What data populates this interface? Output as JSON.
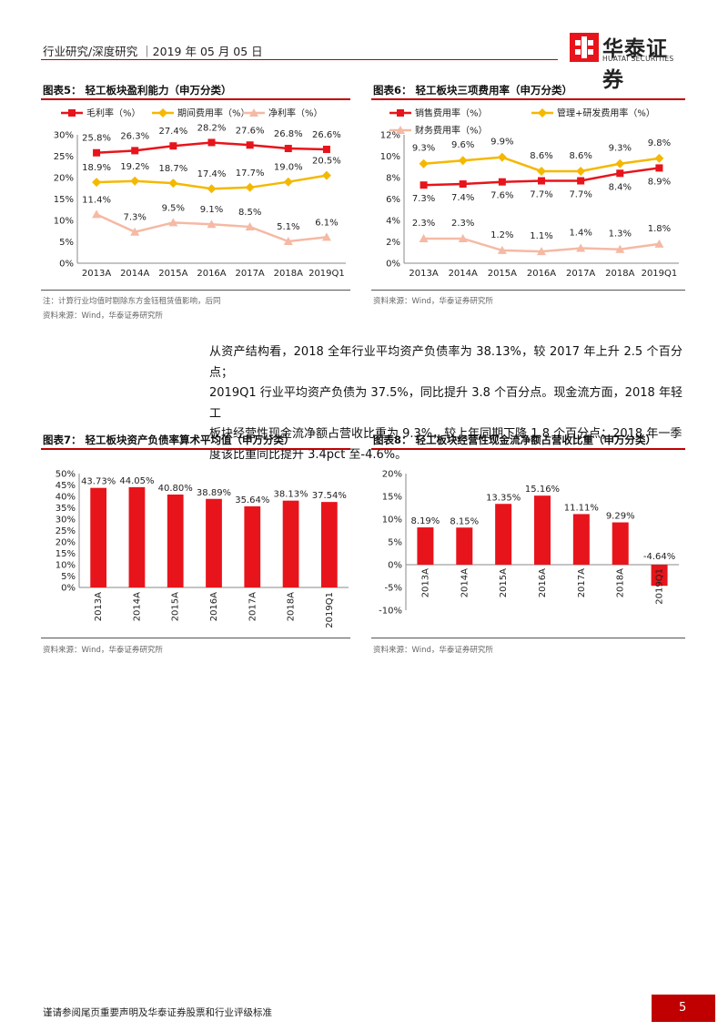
{
  "header": {
    "left_text": "行业研究/深度研究 ｜2019 年 05 月 05 日",
    "logo_cn": "华泰证券",
    "logo_en": "HUATAI SECURITIES"
  },
  "figures": {
    "fig5": {
      "title": "图表5：   轻工板块盈利能力（申万分类）",
      "note": "注：计算行业均值时剔除东方金钰租赁值影响，后同",
      "source": "资料来源：Wind，华泰证券研究所"
    },
    "fig6": {
      "title": "图表6：   轻工板块三项费用率（申万分类）",
      "source": "资料来源：Wind，华泰证券研究所"
    },
    "fig7": {
      "title": "图表7：   轻工板块资产负债率算术平均值（申万分类）",
      "source": "资料来源：Wind，华泰证券研究所"
    },
    "fig8": {
      "title": "图表8：   轻工板块经营性现金流净额占营收比重（申万分类）",
      "source": "资料来源：Wind，华泰证券研究所"
    }
  },
  "body_text": {
    "line1": "从资产结构看，2018 全年行业平均资产负债率为 38.13%，较 2017 年上升 2.5 个百分点；",
    "line2": "2019Q1 行业平均资产负债为 37.5%，同比提升 3.8 个百分点。现金流方面，2018 年轻工",
    "line3": "板块经营性现金流净额占营收比重为 9.3%，较上年同期下降 1.8 个百分点；2018 年一季",
    "line4": "度该比重同比提升 3.4pct 至-4.6%。"
  },
  "footer": {
    "disclaimer": "谨请参阅尾页重要声明及华泰证券股票和行业评级标准",
    "page_number": "5"
  },
  "chart_data": [
    {
      "id": "fig5",
      "type": "line",
      "categories": [
        "2013A",
        "2014A",
        "2015A",
        "2016A",
        "2017A",
        "2018A",
        "2019Q1"
      ],
      "series": [
        {
          "name": "毛利率（%）",
          "values": [
            25.8,
            26.3,
            27.4,
            28.2,
            27.6,
            26.8,
            26.6
          ],
          "labels": [
            "25.8%",
            "26.3%",
            "27.4%",
            "28.2%",
            "27.6%",
            "26.8%",
            "26.6%"
          ],
          "color": "#e8141b",
          "marker": "square"
        },
        {
          "name": "期间费用率（%）",
          "values": [
            18.9,
            19.2,
            18.7,
            17.4,
            17.7,
            19.0,
            20.5
          ],
          "labels": [
            "18.9%",
            "19.2%",
            "18.7%",
            "17.4%",
            "17.7%",
            "19.0%",
            "20.5%"
          ],
          "color": "#f5b800",
          "marker": "diamond"
        },
        {
          "name": "净利率（%）",
          "values": [
            11.4,
            7.3,
            9.5,
            9.1,
            8.5,
            5.1,
            6.1
          ],
          "labels": [
            "11.4%",
            "7.3%",
            "9.5%",
            "9.1%",
            "8.5%",
            "5.1%",
            "6.1%"
          ],
          "color": "#f5b9a4",
          "marker": "triangle"
        }
      ],
      "yticks": [
        "0%",
        "5%",
        "10%",
        "15%",
        "20%",
        "25%",
        "30%"
      ],
      "ylim": [
        0,
        30
      ],
      "grid": false,
      "legend": "top"
    },
    {
      "id": "fig6",
      "type": "line",
      "categories": [
        "2013A",
        "2014A",
        "2015A",
        "2016A",
        "2017A",
        "2018A",
        "2019Q1"
      ],
      "series": [
        {
          "name": "销售费用率（%）",
          "values": [
            7.3,
            7.4,
            7.6,
            7.7,
            7.7,
            8.4,
            8.9
          ],
          "labels": [
            "7.3%",
            "7.4%",
            "7.6%",
            "7.7%",
            "7.7%",
            "8.4%",
            "8.9%"
          ],
          "color": "#e8141b",
          "marker": "square"
        },
        {
          "name": "管理+研发费用率（%）",
          "values": [
            9.3,
            9.6,
            9.9,
            8.6,
            8.6,
            9.3,
            9.8
          ],
          "labels": [
            "9.3%",
            "9.6%",
            "9.9%",
            "8.6%",
            "8.6%",
            "9.3%",
            "9.8%"
          ],
          "color": "#f5b800",
          "marker": "diamond"
        },
        {
          "name": "财务费用率（%）",
          "values": [
            2.3,
            2.3,
            1.2,
            1.1,
            1.4,
            1.3,
            1.8
          ],
          "labels": [
            "2.3%",
            "2.3%",
            "1.2%",
            "1.1%",
            "1.4%",
            "1.3%",
            "1.8%"
          ],
          "color": "#f5b9a4",
          "marker": "triangle"
        }
      ],
      "yticks": [
        "0%",
        "2%",
        "4%",
        "6%",
        "8%",
        "10%",
        "12%"
      ],
      "ylim": [
        0,
        12
      ],
      "grid": false,
      "legend": "top"
    },
    {
      "id": "fig7",
      "type": "bar",
      "categories": [
        "2013A",
        "2014A",
        "2015A",
        "2016A",
        "2017A",
        "2018A",
        "2019Q1"
      ],
      "values": [
        43.73,
        44.05,
        40.8,
        38.89,
        35.64,
        38.13,
        37.54
      ],
      "labels": [
        "43.73%",
        "44.05%",
        "40.80%",
        "38.89%",
        "35.64%",
        "38.13%",
        "37.54%"
      ],
      "color": "#e8141b",
      "yticks": [
        "0%",
        "5%",
        "10%",
        "15%",
        "20%",
        "25%",
        "30%",
        "35%",
        "40%",
        "45%",
        "50%"
      ],
      "ylim": [
        0,
        50
      ],
      "grid": false,
      "legend": "none"
    },
    {
      "id": "fig8",
      "type": "bar",
      "categories": [
        "2013A",
        "2014A",
        "2015A",
        "2016A",
        "2017A",
        "2018A",
        "2019Q1"
      ],
      "values": [
        8.19,
        8.15,
        13.35,
        15.16,
        11.11,
        9.29,
        -4.64
      ],
      "labels": [
        "8.19%",
        "8.15%",
        "13.35%",
        "15.16%",
        "11.11%",
        "9.29%",
        "-4.64%"
      ],
      "color": "#e8141b",
      "yticks": [
        "-10%",
        "-5%",
        "0%",
        "5%",
        "10%",
        "15%",
        "20%"
      ],
      "ylim": [
        -10,
        20
      ],
      "grid": false,
      "legend": "none"
    }
  ]
}
